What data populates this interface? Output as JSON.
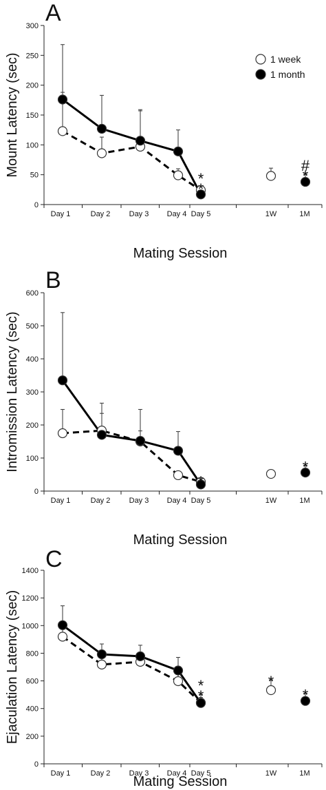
{
  "chart_data": [
    {
      "type": "line",
      "panel_label": "A",
      "ylabel": "Mount Latency (sec)",
      "xlabel": "Mating Session",
      "ylim": [
        0,
        300
      ],
      "yticks": [
        0,
        50,
        100,
        150,
        200,
        250,
        300
      ],
      "categories": [
        "Day 1",
        "Day 2",
        "Day 3",
        "Day 4",
        "Day 5",
        "1W",
        "1M"
      ],
      "legend": {
        "placement": "top-right",
        "entries": [
          "1 week",
          "1 month"
        ]
      },
      "series": [
        {
          "name": "1 week",
          "marker": "open-circle",
          "line": "dashed",
          "color": "#000000",
          "values": [
            123,
            86,
            97,
            49,
            24,
            48,
            null
          ],
          "error": [
            65,
            27,
            62,
            11,
            5,
            13,
            null
          ]
        },
        {
          "name": "1 month",
          "marker": "filled-circle",
          "line": "solid",
          "color": "#000000",
          "values": [
            176,
            127,
            107,
            89,
            17,
            null,
            38
          ],
          "error": [
            92,
            56,
            50,
            36,
            6,
            null,
            13
          ]
        }
      ],
      "annotations": [
        {
          "category": "Day 5",
          "text": "*"
        },
        {
          "category": "Day 5",
          "text": "*"
        },
        {
          "category": "1M",
          "text": "*"
        },
        {
          "category": "1M",
          "text": "#"
        }
      ]
    },
    {
      "type": "line",
      "panel_label": "B",
      "ylabel": "Intromission Latency (sec)",
      "xlabel": "Mating Session",
      "ylim": [
        0,
        600
      ],
      "yticks": [
        0,
        100,
        200,
        300,
        400,
        500,
        600
      ],
      "categories": [
        "Day 1",
        "Day 2",
        "Day 3",
        "Day 4",
        "Day 5",
        "1W",
        "1M"
      ],
      "series": [
        {
          "name": "1 week",
          "marker": "open-circle",
          "line": "dashed",
          "color": "#000000",
          "values": [
            175,
            183,
            150,
            48,
            28,
            52,
            null
          ],
          "error": [
            72,
            83,
            32,
            10,
            5,
            10,
            null
          ]
        },
        {
          "name": "1 month",
          "marker": "filled-circle",
          "line": "solid",
          "color": "#000000",
          "values": [
            335,
            170,
            152,
            122,
            20,
            null,
            56
          ],
          "error": [
            205,
            65,
            95,
            58,
            6,
            null,
            22
          ]
        }
      ],
      "annotations": [
        {
          "category": "Day 5",
          "text": "*"
        },
        {
          "category": "1M",
          "text": "*"
        }
      ]
    },
    {
      "type": "line",
      "panel_label": "C",
      "ylabel": "Ejaculation Latency (sec)",
      "xlabel": "Mating Session",
      "ylim": [
        0,
        1400
      ],
      "yticks": [
        0,
        200,
        400,
        600,
        800,
        1000,
        1200,
        1400
      ],
      "categories": [
        "Day 1",
        "Day 2",
        "Day 3",
        "Day 4",
        "Day 5",
        "1W",
        "1M"
      ],
      "series": [
        {
          "name": "1 week",
          "marker": "open-circle",
          "line": "dashed",
          "color": "#000000",
          "values": [
            920,
            718,
            738,
            598,
            442,
            533,
            null
          ],
          "error": [
            85,
            60,
            60,
            55,
            60,
            75,
            null
          ]
        },
        {
          "name": "1 month",
          "marker": "filled-circle",
          "line": "solid",
          "color": "#000000",
          "values": [
            1003,
            792,
            778,
            675,
            440,
            null,
            455
          ],
          "error": [
            140,
            75,
            80,
            95,
            40,
            null,
            55
          ]
        }
      ],
      "annotations": [
        {
          "category": "Day 5",
          "text": "*"
        },
        {
          "category": "Day 5",
          "text": "*"
        },
        {
          "category": "1W",
          "text": "*"
        },
        {
          "category": "1M",
          "text": "*"
        }
      ]
    }
  ]
}
